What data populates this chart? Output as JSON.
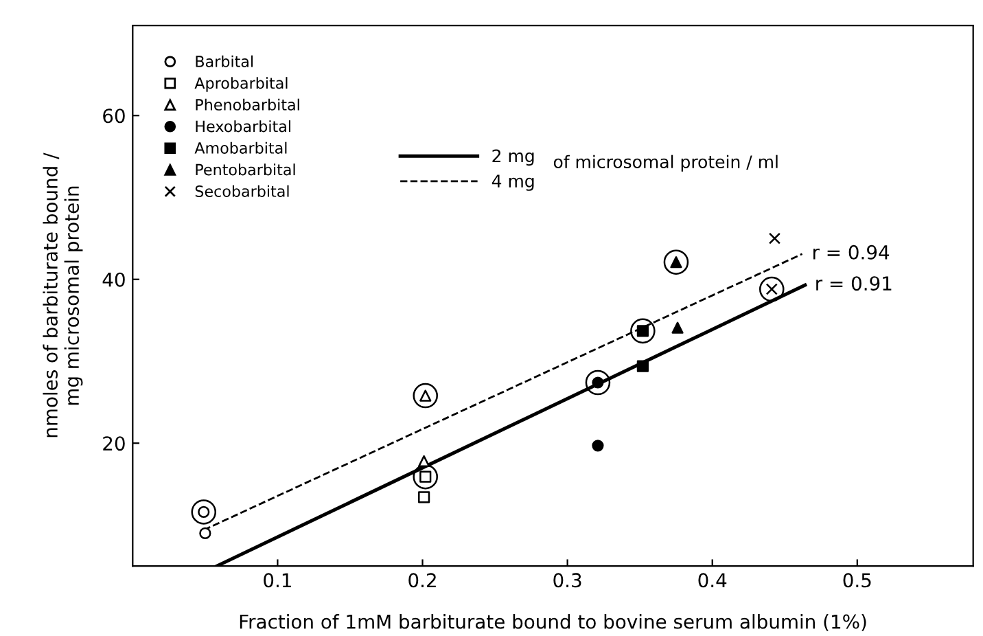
{
  "chart_data": {
    "type": "scatter",
    "xlabel": "Fraction of 1mM barbiturate bound to bovine serum albumin (1%)",
    "ylabel": "nmoles of barbiturate bound /\nmg microsomal protein",
    "xlim": [
      0,
      0.58
    ],
    "ylim": [
      5,
      71
    ],
    "xticks": [
      0.1,
      0.2,
      0.3,
      0.4,
      0.5
    ],
    "yticks": [
      20,
      40,
      60
    ],
    "grid": false,
    "legend": "top left",
    "series": [
      {
        "name": "Barbital",
        "color": "#ffffff",
        "marker": "circle",
        "x": [
          0.05,
          0.049
        ],
        "values": [
          9.0,
          11.6
        ]
      },
      {
        "name": "Aprobarbital",
        "color": "#ffffff",
        "marker": "square",
        "x": [
          0.201,
          0.202
        ],
        "values": [
          13.4,
          15.9
        ]
      },
      {
        "name": "Phenobarbital",
        "color": "#ffffff",
        "marker": "triangle",
        "x": [
          0.201,
          0.202
        ],
        "values": [
          17.8,
          25.8
        ]
      },
      {
        "name": "Hexobarbital",
        "color": "#000000",
        "marker": "circle",
        "x": [
          0.321,
          0.321
        ],
        "values": [
          19.7,
          27.4
        ]
      },
      {
        "name": "Amobarbital",
        "color": "#000000",
        "marker": "square",
        "x": [
          0.352,
          0.352
        ],
        "values": [
          29.4,
          33.7
        ]
      },
      {
        "name": "Pentobarbital",
        "color": "#000000",
        "marker": "triangle",
        "x": [
          0.376,
          0.375
        ],
        "values": [
          34.1,
          42.1
        ]
      },
      {
        "name": "Secobarbital",
        "color": "#000000",
        "marker": "cross",
        "x": [
          0.443,
          0.441
        ],
        "values": [
          45.0,
          38.8
        ]
      },
      {
        "color": "#000000",
        "marker": "circle",
        "x": [
          0.049,
          0.202,
          0.202,
          0.321,
          0.352,
          0.375,
          0.441
        ],
        "values": [
          11.6,
          15.9,
          25.8,
          27.4,
          33.7,
          42.1,
          38.8
        ]
      },
      {
        "name": "2 mg",
        "type": "line",
        "color": "#000000",
        "line_style": "solid",
        "x": [
          0.058,
          0.464
        ],
        "values": [
          5.0,
          39.3
        ]
      },
      {
        "name": "4 mg",
        "type": "line",
        "color": "#000000",
        "line_style": "dashed",
        "x": [
          0.049,
          0.462
        ],
        "values": [
          9.4,
          43.1
        ]
      }
    ],
    "annotations": [
      "of microsomal protein / ml",
      {
        "text": "r = 0.94",
        "x": 0.462,
        "y": 43.1
      },
      {
        "text": "r = 0.91",
        "x": 0.464,
        "y": 39.3
      }
    ]
  }
}
